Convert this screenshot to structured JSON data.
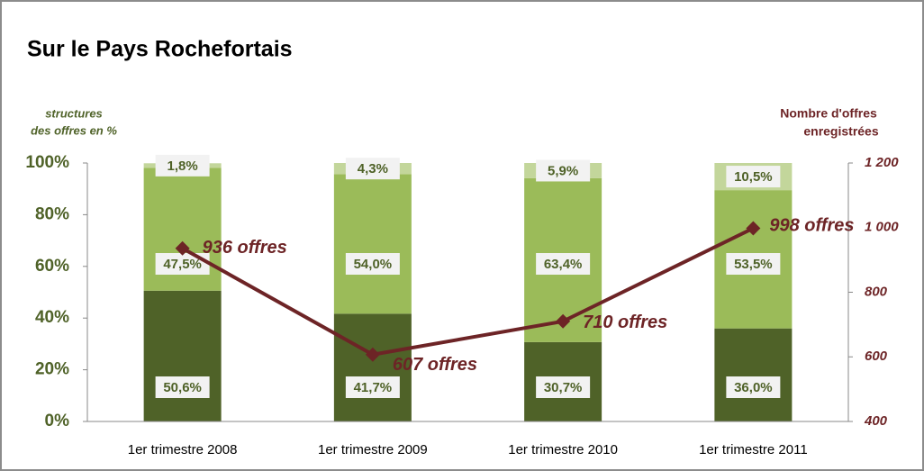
{
  "chart_data": {
    "type": "stacked_bar_line",
    "title": "Sur le Pays Rochefortais",
    "ylabel": [
      "structures",
      "des offres en %"
    ],
    "y2label": [
      "Nombre d'offres",
      "enregistrées"
    ],
    "categories": [
      "1er trimestre 2008",
      "1er trimestre 2009",
      "1er trimestre 2010",
      "1er trimestre 2011"
    ],
    "series": [
      {
        "color": "#4f6228",
        "values": [
          50.6,
          41.7,
          30.7,
          36.0
        ],
        "value_labels": [
          "50,6%",
          "41,7%",
          "30,7%",
          "36,0%"
        ]
      },
      {
        "color": "#9bbb59",
        "values": [
          47.5,
          54.0,
          63.4,
          53.5
        ],
        "value_labels": [
          "47,5%",
          "54,0%",
          "63,4%",
          "53,5%"
        ]
      },
      {
        "color": "#c3d69b",
        "values": [
          1.8,
          4.3,
          5.9,
          10.5
        ],
        "value_labels": [
          "1,8%",
          "4,3%",
          "5,9%",
          "10,5%"
        ]
      },
      {
        "type": "line",
        "axis": "y2",
        "color": "#6d2426",
        "values": [
          936,
          607,
          710,
          998
        ],
        "value_labels": [
          "936 offres",
          "607 offres",
          "710 offres",
          "998 offres"
        ]
      }
    ],
    "ylim": [
      0,
      100
    ],
    "yticks": [
      {
        "value": 0,
        "label": "0%"
      },
      {
        "value": 20,
        "label": "20%"
      },
      {
        "value": 40,
        "label": "40%"
      },
      {
        "value": 60,
        "label": "60%"
      },
      {
        "value": 80,
        "label": "80%"
      },
      {
        "value": 100,
        "label": "100%"
      }
    ],
    "y2lim": [
      400,
      1200
    ],
    "y2ticks": [
      400,
      600,
      800,
      {
        "value": 1000,
        "label": "1 000"
      },
      {
        "value": 1200,
        "label": "1 200"
      }
    ]
  }
}
